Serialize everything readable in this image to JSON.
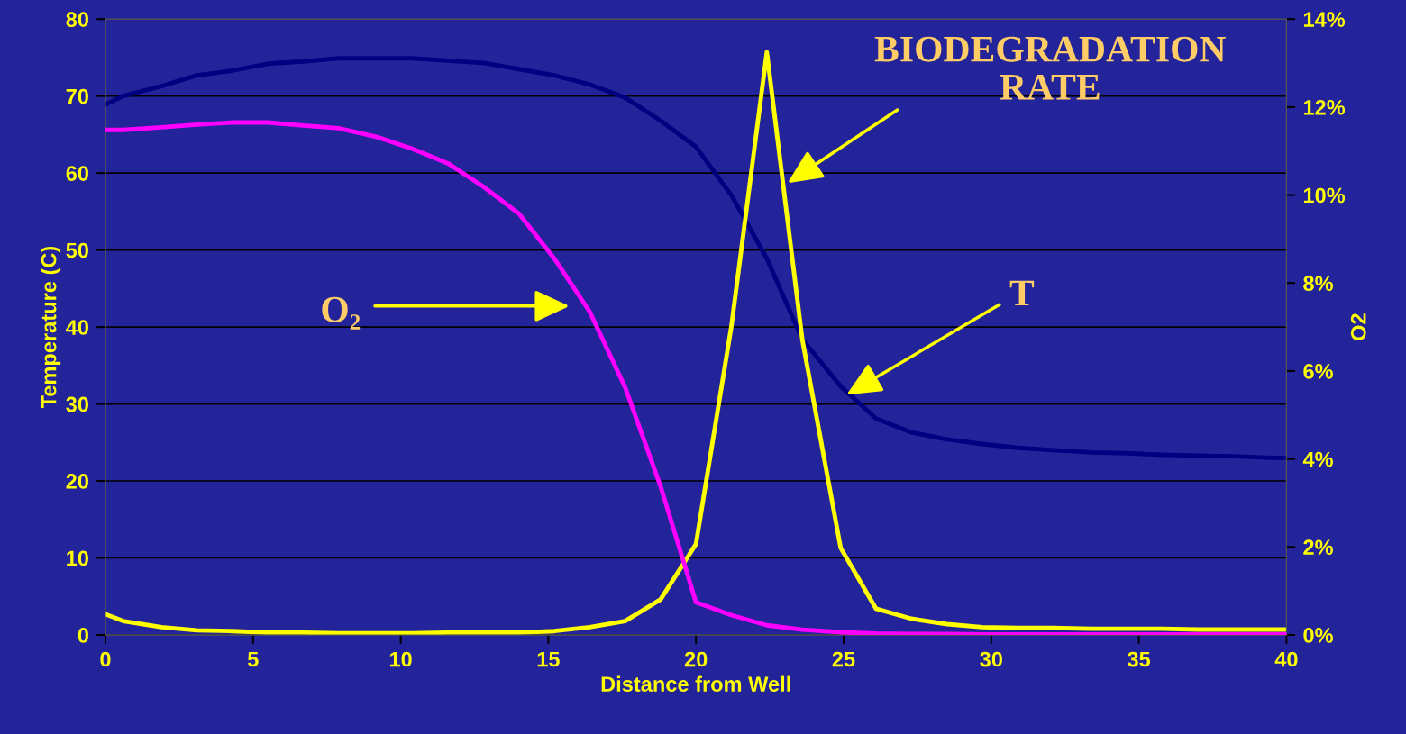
{
  "chart_data": {
    "type": "line",
    "xlabel": "Distance from Well",
    "ylabel": "Temperature (C)",
    "y2label": "O2",
    "xlim": [
      0,
      40
    ],
    "xticks": [
      0,
      5,
      10,
      15,
      20,
      25,
      30,
      35,
      40
    ],
    "ylim": [
      0,
      80
    ],
    "yticks": [
      0,
      10,
      20,
      30,
      40,
      50,
      60,
      70,
      80
    ],
    "y2lim": [
      0,
      14
    ],
    "y2ticks": [
      {
        "value": 0,
        "label": "0%"
      },
      {
        "value": 2,
        "label": "2%"
      },
      {
        "value": 4,
        "label": "4%"
      },
      {
        "value": 6,
        "label": "6%"
      },
      {
        "value": 8,
        "label": "8%"
      },
      {
        "value": 10,
        "label": "10%"
      },
      {
        "value": 12,
        "label": "12%"
      },
      {
        "value": 14,
        "label": "14%"
      }
    ],
    "grid": "y",
    "marker": "none",
    "line_style": "solid",
    "x": [
      0,
      0.6,
      1.9,
      3.1,
      4.3,
      5.5,
      6.7,
      7.9,
      9.2,
      10.4,
      11.6,
      12.8,
      14.0,
      15.2,
      16.4,
      17.6,
      18.8,
      20.0,
      21.2,
      22.4,
      23.6,
      24.9,
      26.1,
      27.3,
      28.5,
      29.7,
      30.9,
      32.1,
      33.4,
      34.6,
      35.8,
      37.0,
      38.2,
      39.5,
      40
    ],
    "series": [
      {
        "color": "#000080",
        "values": [
          68.9,
          70.0,
          71.3,
          72.7,
          73.3,
          74.2,
          74.5,
          74.9,
          74.9,
          74.9,
          74.6,
          74.3,
          73.5,
          72.7,
          71.5,
          69.8,
          66.8,
          63.4,
          57.1,
          48.9,
          38.4,
          32.3,
          28.1,
          26.3,
          25.4,
          24.8,
          24.3,
          24.0,
          23.7,
          23.6,
          23.4,
          23.3,
          23.2,
          23.0,
          23.0
        ]
      },
      {
        "color": "#ff00ff",
        "axis": "y2",
        "values": [
          11.48,
          11.48,
          11.54,
          11.6,
          11.65,
          11.65,
          11.58,
          11.52,
          11.32,
          11.05,
          10.72,
          10.19,
          9.58,
          8.56,
          7.35,
          5.63,
          3.38,
          0.74,
          0.45,
          0.22,
          0.12,
          0.06,
          0.03,
          0.02,
          0.02,
          0.01,
          0.01,
          0.01,
          0.01,
          0.01,
          0.01,
          0.01,
          0.01,
          0.01,
          0.01
        ]
      },
      {
        "color": "#ffff00",
        "values": [
          2.7,
          1.8,
          1.0,
          0.6,
          0.5,
          0.3,
          0.3,
          0.2,
          0.2,
          0.2,
          0.3,
          0.3,
          0.3,
          0.5,
          1.0,
          1.8,
          4.6,
          11.8,
          40.1,
          75.7,
          38.4,
          11.3,
          3.4,
          2.1,
          1.4,
          1.0,
          0.9,
          0.9,
          0.8,
          0.8,
          0.8,
          0.7,
          0.7,
          0.7,
          0.7
        ]
      }
    ],
    "annotations": [
      {
        "text": "BIODEGRADATION\nRATE",
        "x": 23.1,
        "y": 58.7
      },
      {
        "text": "T",
        "x": 25.1,
        "y": 31.2
      },
      "O₂"
    ]
  }
}
